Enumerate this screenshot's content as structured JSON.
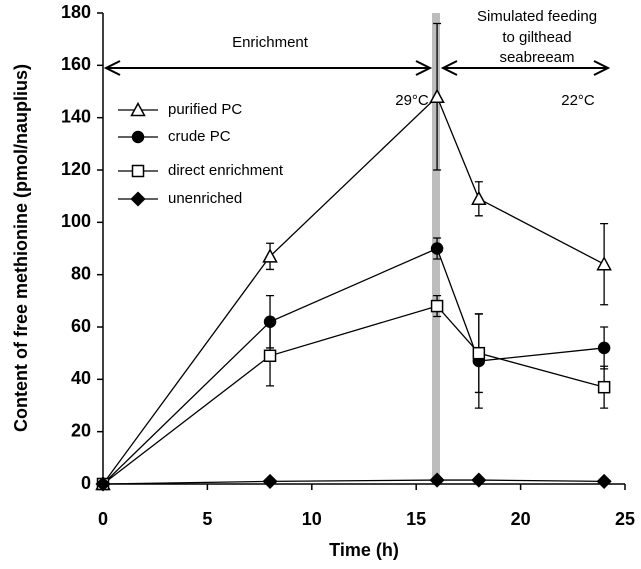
{
  "chart_data": {
    "type": "line",
    "x_label": "Time (h)",
    "y_label": "Content of free methionine (pmol/nauplius)",
    "annotations": [
      "Enrichment",
      "Simulated feeding",
      "to gilthead",
      "seabreeam",
      "29°C",
      "22°C"
    ],
    "x": [
      0,
      8,
      16,
      18,
      24
    ],
    "series": [
      {
        "name": "purified PC",
        "color": "#000000",
        "marker": "triangle-open",
        "values": [
          0,
          87,
          148,
          109,
          84
        ],
        "errors": [
          null,
          5,
          28,
          6.5,
          15.5
        ]
      },
      {
        "name": "crude PC",
        "color": "#000000",
        "marker": "circle-filled",
        "values": [
          0,
          62,
          90,
          47,
          52
        ],
        "errors": [
          null,
          10,
          4,
          18,
          8
        ]
      },
      {
        "name": "direct enrichment",
        "color": "#000000",
        "marker": "square-open",
        "values": [
          0,
          49,
          68,
          50,
          37
        ],
        "errors": [
          null,
          11.5,
          4,
          15,
          8
        ]
      },
      {
        "name": "unenriched",
        "color": "#000000",
        "marker": "diamond-filled",
        "values": [
          0,
          1,
          1.5,
          1.5,
          1
        ]
      }
    ],
    "xlim": [
      0,
      25
    ],
    "xticks": [
      0,
      5,
      10,
      15,
      20,
      25
    ],
    "ylim": [
      0,
      180
    ],
    "yticks": [
      0,
      20,
      40,
      60,
      80,
      100,
      120,
      140,
      160,
      180
    ],
    "grid": false
  }
}
